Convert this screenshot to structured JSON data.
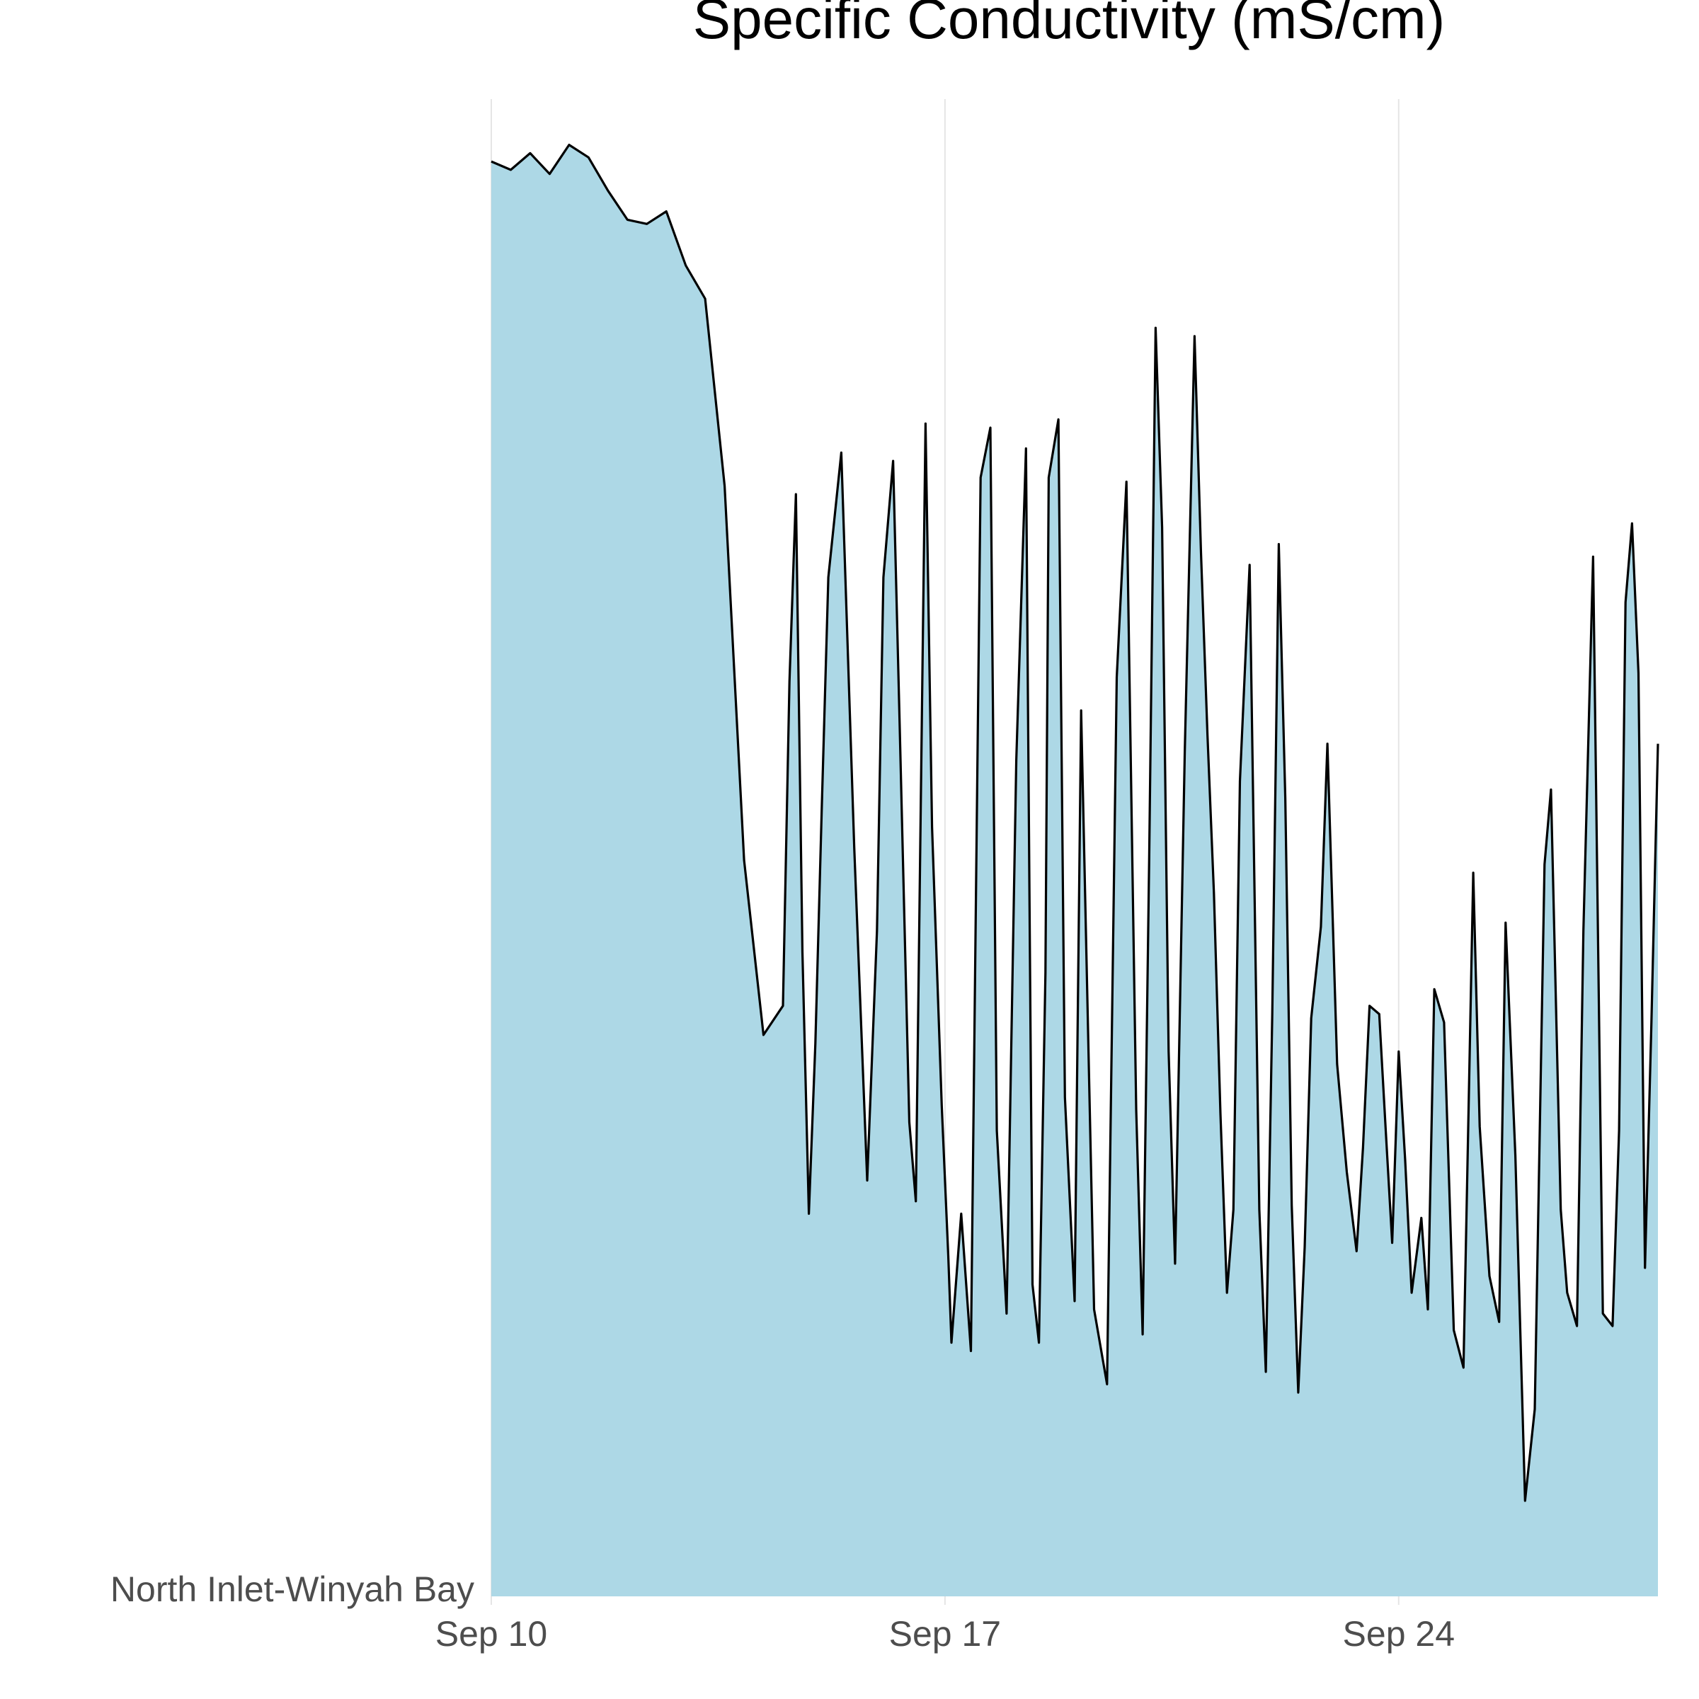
{
  "chart_data": {
    "type": "area",
    "title": "Specific Conductivity (mS/cm)",
    "row_label": "North Inlet-Winyah Bay",
    "x_ticks": [
      "Sep 10",
      "Sep 17",
      "Sep 24"
    ],
    "xlim": [
      "Sep 10",
      "Sep 28"
    ],
    "grid": "vertical lines at x ticks",
    "fill_color": "#add8e6",
    "line_color": "#000000",
    "series": [
      {
        "x": [
          0,
          0.3,
          0.6,
          0.9,
          1.2,
          1.5,
          1.8,
          2.1,
          2.4,
          2.7,
          3.0,
          3.3,
          3.6,
          3.9,
          4.2,
          4.5,
          4.6,
          4.7,
          4.8,
          4.9,
          5.0,
          5.1,
          5.2,
          5.4,
          5.6,
          5.8,
          5.95,
          6.05,
          6.2,
          6.3,
          6.45,
          6.55,
          6.7,
          6.8,
          6.95,
          7.05,
          7.1,
          7.25,
          7.4,
          7.55,
          7.7,
          7.8,
          7.95,
          8.1,
          8.25,
          8.35,
          8.45,
          8.55,
          8.6,
          8.75,
          8.85,
          9.0,
          9.1,
          9.3,
          9.5,
          9.65,
          9.8,
          9.95,
          10.05,
          10.15,
          10.25,
          10.35,
          10.45,
          10.55,
          10.7,
          10.85,
          10.95,
          11.05,
          11.15,
          11.25,
          11.35,
          11.45,
          11.55,
          11.7,
          11.85,
          11.95,
          12.05,
          12.15,
          12.25,
          12.35,
          12.45,
          12.55,
          12.65,
          12.8,
          12.9,
          13.05,
          13.2,
          13.35,
          13.45,
          13.55,
          13.7,
          13.8,
          13.9,
          14.0,
          14.1,
          14.2,
          14.35,
          14.45,
          14.55,
          14.7,
          14.85,
          15.0,
          15.15,
          15.25,
          15.4,
          15.55,
          15.65,
          15.8,
          15.95,
          16.1,
          16.25,
          16.35,
          16.5,
          16.6,
          16.75,
          16.85,
          17.0,
          17.15,
          17.3,
          17.4,
          17.5,
          17.6,
          17.7,
          17.8,
          17.9,
          18.0
        ],
        "values": [
          34.5,
          34.3,
          34.7,
          34.2,
          34.9,
          34.6,
          33.8,
          33.1,
          33.0,
          33.3,
          32.0,
          31.2,
          26.7,
          17.7,
          13.5,
          14.2,
          22.0,
          26.5,
          15.5,
          9.2,
          13.3,
          19.0,
          24.5,
          27.5,
          18.0,
          10.0,
          16.0,
          24.5,
          27.3,
          21.0,
          11.4,
          9.5,
          28.2,
          18.5,
          11.8,
          8.2,
          6.1,
          9.2,
          5.9,
          26.9,
          28.1,
          11.2,
          6.8,
          20.1,
          27.6,
          7.5,
          6.1,
          15.0,
          26.9,
          28.3,
          12.0,
          7.1,
          21.3,
          6.9,
          5.1,
          22.1,
          26.8,
          11.7,
          6.3,
          17.7,
          30.5,
          25.7,
          13.1,
          8.0,
          20.3,
          30.3,
          25.1,
          20.7,
          16.9,
          11.6,
          7.3,
          9.3,
          19.6,
          24.8,
          9.3,
          5.4,
          14.0,
          25.3,
          19.2,
          9.4,
          4.9,
          8.4,
          13.9,
          16.1,
          20.5,
          12.8,
          10.2,
          8.3,
          10.8,
          14.2,
          14.0,
          11.2,
          8.5,
          13.1,
          10.5,
          7.3,
          9.1,
          6.9,
          14.6,
          13.8,
          6.4,
          5.5,
          17.4,
          11.3,
          7.7,
          6.6,
          16.2,
          10.6,
          2.3,
          4.5,
          17.6,
          19.4,
          9.3,
          7.3,
          6.5,
          16.0,
          25.0,
          6.8,
          6.5,
          11.2,
          23.9,
          25.8,
          22.2,
          7.9,
          13.8,
          20.5
        ]
      }
    ]
  }
}
